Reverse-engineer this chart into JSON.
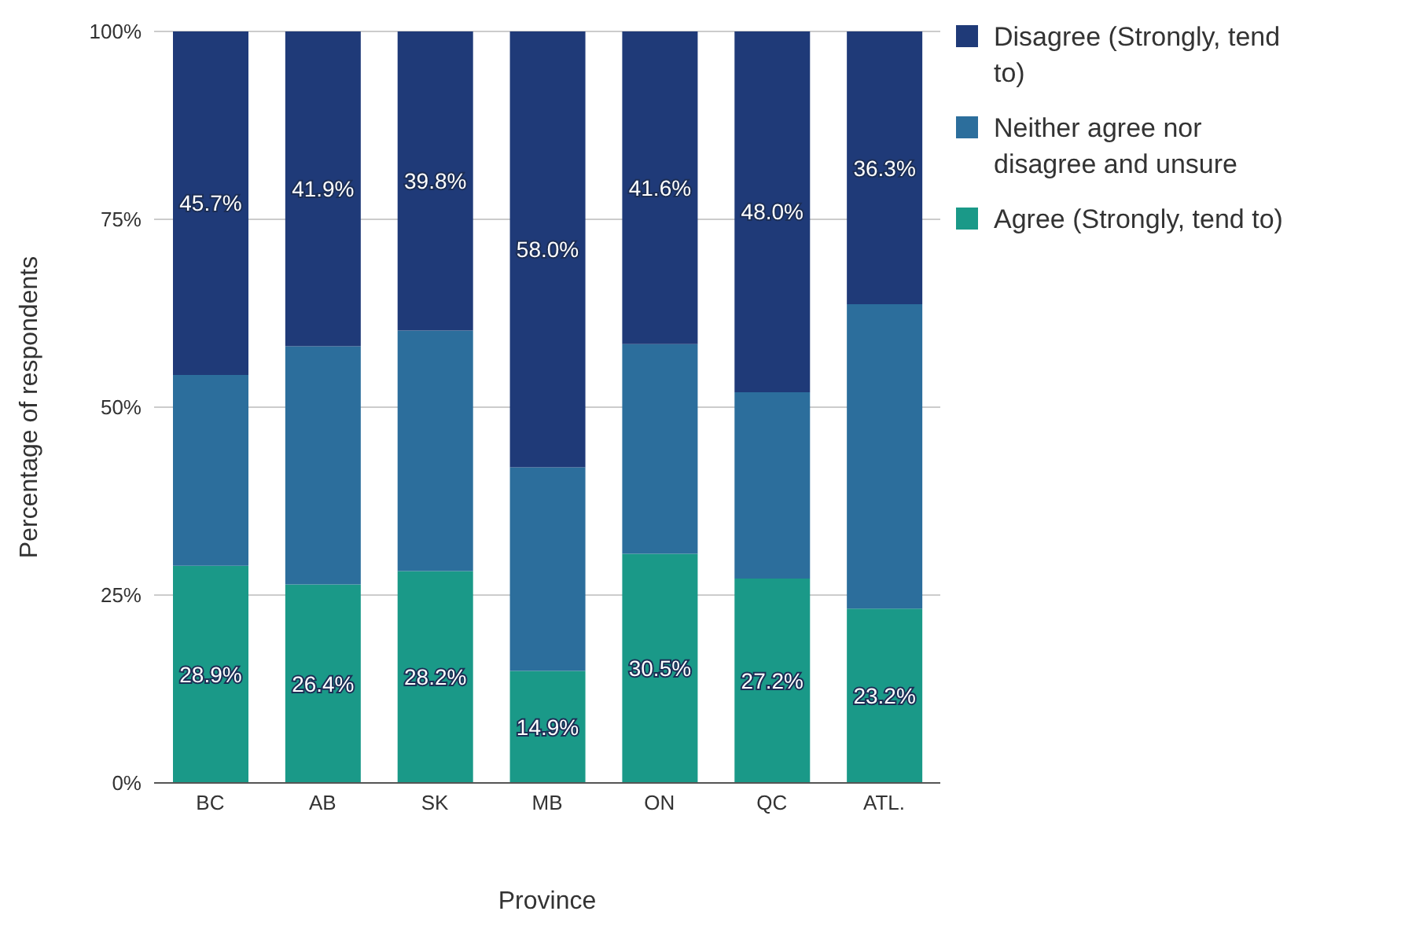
{
  "chart_data": {
    "type": "bar",
    "stacked": true,
    "xlabel": "Province",
    "ylabel": "Percentage of respondents",
    "categories": [
      "BC",
      "AB",
      "SK",
      "MB",
      "ON",
      "QC",
      "ATL."
    ],
    "series": [
      {
        "name": "Agree (Strongly, tend to)",
        "color": "#1a9988",
        "values": [
          28.9,
          26.4,
          28.2,
          14.9,
          30.5,
          27.2,
          23.2
        ],
        "value_labels": [
          "28.9%",
          "26.4%",
          "28.2%",
          "14.9%",
          "30.5%",
          "27.2%",
          "23.2%"
        ]
      },
      {
        "name": "Neither agree nor disagree and unsure",
        "color": "#2c6e9c",
        "values": [
          25.4,
          31.7,
          32.0,
          27.1,
          27.9,
          24.8,
          40.5
        ]
      },
      {
        "name": "Disagree (Strongly, tend to)",
        "color": "#1f3a78",
        "values": [
          45.7,
          41.9,
          39.8,
          58.0,
          41.6,
          48.0,
          36.3
        ],
        "value_labels": [
          "45.7%",
          "41.9%",
          "39.8%",
          "58.0%",
          "41.6%",
          "48.0%",
          "36.3%"
        ]
      }
    ],
    "ylim": [
      0,
      100
    ],
    "yticks": [
      {
        "value": 0,
        "label": "0%"
      },
      {
        "value": 25,
        "label": "25%"
      },
      {
        "value": 50,
        "label": "50%"
      },
      {
        "value": 75,
        "label": "75%"
      },
      {
        "value": 100,
        "label": "100%"
      }
    ],
    "grid": "y",
    "legend": "top right"
  }
}
